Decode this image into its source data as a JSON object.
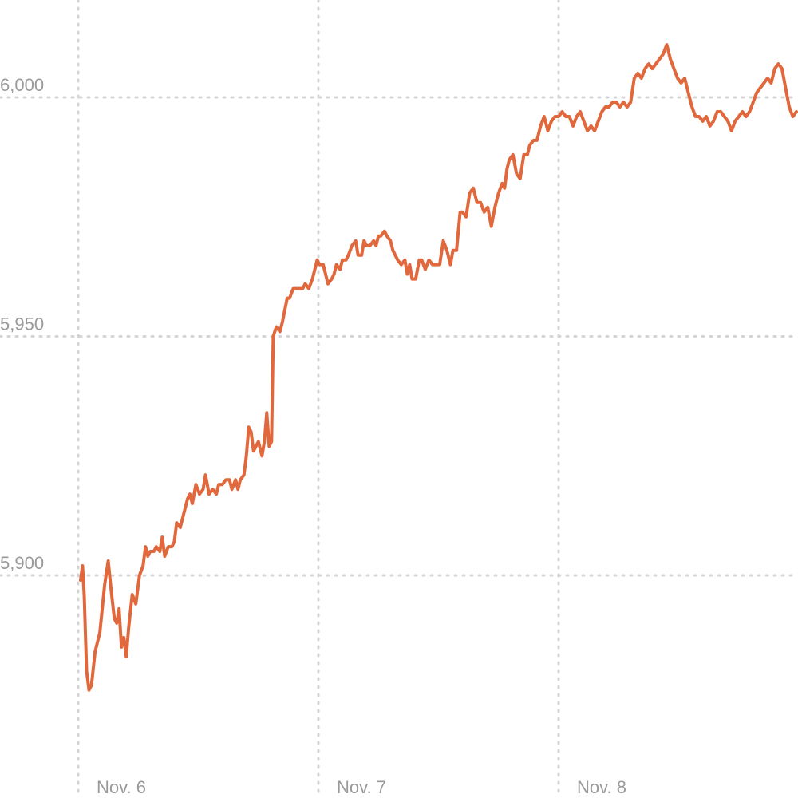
{
  "chart_data": {
    "type": "line",
    "title": "",
    "xlabel": "",
    "ylabel": "",
    "ylim": [
      5868,
      6021
    ],
    "xlim": [
      -0.01,
      3.0
    ],
    "yticks": [
      {
        "value": 5900,
        "label": "5,900"
      },
      {
        "value": 5950,
        "label": "5,950"
      },
      {
        "value": 6000,
        "label": "6,000"
      }
    ],
    "xticks": [
      {
        "value": 0,
        "label": "Nov. 6"
      },
      {
        "value": 1,
        "label": "Nov. 7"
      },
      {
        "value": 2,
        "label": "Nov. 8"
      }
    ],
    "grid": true,
    "colors": {
      "line": "#e0683c",
      "grid": "#d4d4d4",
      "tick_text": "#9a9a9a"
    },
    "series": [
      {
        "values": [
          [
            0.01,
            5899
          ],
          [
            0.018,
            5902
          ],
          [
            0.025,
            5896
          ],
          [
            0.035,
            5880
          ],
          [
            0.045,
            5876
          ],
          [
            0.055,
            5877
          ],
          [
            0.07,
            5884
          ],
          [
            0.09,
            5888
          ],
          [
            0.11,
            5898
          ],
          [
            0.125,
            5903
          ],
          [
            0.135,
            5898
          ],
          [
            0.15,
            5891
          ],
          [
            0.16,
            5890
          ],
          [
            0.17,
            5893
          ],
          [
            0.18,
            5885
          ],
          [
            0.19,
            5887
          ],
          [
            0.2,
            5883
          ],
          [
            0.21,
            5889
          ],
          [
            0.225,
            5896
          ],
          [
            0.24,
            5894
          ],
          [
            0.255,
            5900
          ],
          [
            0.27,
            5902
          ],
          [
            0.28,
            5906
          ],
          [
            0.29,
            5904
          ],
          [
            0.3,
            5905
          ],
          [
            0.315,
            5905
          ],
          [
            0.325,
            5906
          ],
          [
            0.34,
            5905
          ],
          [
            0.35,
            5908
          ],
          [
            0.36,
            5904
          ],
          [
            0.375,
            5906
          ],
          [
            0.39,
            5906
          ],
          [
            0.4,
            5907
          ],
          [
            0.41,
            5911
          ],
          [
            0.425,
            5910
          ],
          [
            0.44,
            5913
          ],
          [
            0.455,
            5916
          ],
          [
            0.465,
            5917
          ],
          [
            0.475,
            5915
          ],
          [
            0.49,
            5919
          ],
          [
            0.505,
            5917
          ],
          [
            0.52,
            5918
          ],
          [
            0.53,
            5921
          ],
          [
            0.545,
            5917
          ],
          [
            0.56,
            5918
          ],
          [
            0.575,
            5917
          ],
          [
            0.585,
            5919
          ],
          [
            0.6,
            5919
          ],
          [
            0.615,
            5920
          ],
          [
            0.63,
            5920
          ],
          [
            0.64,
            5918
          ],
          [
            0.655,
            5920
          ],
          [
            0.665,
            5918
          ],
          [
            0.675,
            5920
          ],
          [
            0.69,
            5921
          ],
          [
            0.7,
            5925
          ],
          [
            0.71,
            5931
          ],
          [
            0.72,
            5930
          ],
          [
            0.73,
            5926
          ],
          [
            0.74,
            5927
          ],
          [
            0.75,
            5928
          ],
          [
            0.765,
            5925
          ],
          [
            0.775,
            5928
          ],
          [
            0.785,
            5934
          ],
          [
            0.795,
            5927
          ],
          [
            0.805,
            5928
          ],
          [
            0.812,
            5950
          ],
          [
            0.825,
            5952
          ],
          [
            0.84,
            5951
          ],
          [
            0.85,
            5953
          ],
          [
            0.87,
            5958
          ],
          [
            0.88,
            5958
          ],
          [
            0.895,
            5960
          ],
          [
            0.91,
            5960
          ],
          [
            0.925,
            5960
          ],
          [
            0.935,
            5960
          ],
          [
            0.945,
            5961
          ],
          [
            0.96,
            5960
          ],
          [
            0.975,
            5962
          ],
          [
            0.985,
            5964
          ],
          [
            0.995,
            5966
          ],
          [
            1.005,
            5965
          ],
          [
            1.02,
            5965
          ],
          [
            1.03,
            5963
          ],
          [
            1.04,
            5961
          ],
          [
            1.055,
            5962
          ],
          [
            1.065,
            5963
          ],
          [
            1.075,
            5965
          ],
          [
            1.09,
            5964
          ],
          [
            1.1,
            5966
          ],
          [
            1.115,
            5966
          ],
          [
            1.125,
            5967
          ],
          [
            1.14,
            5969
          ],
          [
            1.155,
            5970
          ],
          [
            1.165,
            5967
          ],
          [
            1.18,
            5967
          ],
          [
            1.19,
            5970
          ],
          [
            1.2,
            5969
          ],
          [
            1.215,
            5969
          ],
          [
            1.23,
            5970
          ],
          [
            1.24,
            5969
          ],
          [
            1.25,
            5971
          ],
          [
            1.26,
            5971
          ],
          [
            1.275,
            5972
          ],
          [
            1.285,
            5971
          ],
          [
            1.3,
            5970
          ],
          [
            1.31,
            5968
          ],
          [
            1.32,
            5967
          ],
          [
            1.33,
            5966
          ],
          [
            1.345,
            5965
          ],
          [
            1.36,
            5966
          ],
          [
            1.37,
            5963
          ],
          [
            1.38,
            5965
          ],
          [
            1.39,
            5962
          ],
          [
            1.405,
            5962
          ],
          [
            1.42,
            5966
          ],
          [
            1.43,
            5966
          ],
          [
            1.445,
            5964
          ],
          [
            1.46,
            5966
          ],
          [
            1.475,
            5965
          ],
          [
            1.49,
            5965
          ],
          [
            1.505,
            5965
          ],
          [
            1.52,
            5970
          ],
          [
            1.535,
            5968
          ],
          [
            1.55,
            5965
          ],
          [
            1.56,
            5968
          ],
          [
            1.575,
            5968
          ],
          [
            1.59,
            5976
          ],
          [
            1.6,
            5976
          ],
          [
            1.615,
            5975
          ],
          [
            1.63,
            5980
          ],
          [
            1.645,
            5981
          ],
          [
            1.66,
            5978
          ],
          [
            1.675,
            5978
          ],
          [
            1.69,
            5976
          ],
          [
            1.705,
            5977
          ],
          [
            1.72,
            5973
          ],
          [
            1.735,
            5977
          ],
          [
            1.75,
            5980
          ],
          [
            1.765,
            5982
          ],
          [
            1.775,
            5981
          ],
          [
            1.785,
            5985
          ],
          [
            1.795,
            5987
          ],
          [
            1.81,
            5988
          ],
          [
            1.825,
            5984
          ],
          [
            1.84,
            5983
          ],
          [
            1.855,
            5988
          ],
          [
            1.87,
            5988
          ],
          [
            1.88,
            5990
          ],
          [
            1.895,
            5991
          ],
          [
            1.91,
            5991
          ],
          [
            1.925,
            5994
          ],
          [
            1.94,
            5996
          ],
          [
            1.955,
            5993
          ],
          [
            1.97,
            5995
          ],
          [
            1.985,
            5996
          ],
          [
            2.0,
            5996
          ],
          [
            2.015,
            5997
          ],
          [
            2.03,
            5996
          ],
          [
            2.045,
            5996
          ],
          [
            2.06,
            5994
          ],
          [
            2.075,
            5996
          ],
          [
            2.09,
            5997
          ],
          [
            2.105,
            5995
          ],
          [
            2.12,
            5993
          ],
          [
            2.135,
            5994
          ],
          [
            2.15,
            5993
          ],
          [
            2.165,
            5995
          ],
          [
            2.18,
            5997
          ],
          [
            2.195,
            5998
          ],
          [
            2.21,
            5998
          ],
          [
            2.225,
            5999
          ],
          [
            2.24,
            5999
          ],
          [
            2.255,
            5998
          ],
          [
            2.27,
            5999
          ],
          [
            2.285,
            5998
          ],
          [
            2.3,
            5999
          ],
          [
            2.315,
            6004
          ],
          [
            2.33,
            6005
          ],
          [
            2.345,
            6004
          ],
          [
            2.36,
            6006
          ],
          [
            2.375,
            6007
          ],
          [
            2.39,
            6006
          ],
          [
            2.405,
            6007
          ],
          [
            2.42,
            6008
          ],
          [
            2.435,
            6009
          ],
          [
            2.45,
            6011
          ],
          [
            2.465,
            6008
          ],
          [
            2.48,
            6006
          ],
          [
            2.495,
            6004
          ],
          [
            2.51,
            6003
          ],
          [
            2.525,
            6004
          ],
          [
            2.54,
            6001
          ],
          [
            2.555,
            5998
          ],
          [
            2.57,
            5996
          ],
          [
            2.585,
            5996
          ],
          [
            2.6,
            5995
          ],
          [
            2.615,
            5996
          ],
          [
            2.63,
            5994
          ],
          [
            2.645,
            5995
          ],
          [
            2.66,
            5997
          ],
          [
            2.675,
            5997
          ],
          [
            2.69,
            5996
          ],
          [
            2.705,
            5995
          ],
          [
            2.72,
            5993
          ],
          [
            2.735,
            5995
          ],
          [
            2.75,
            5996
          ],
          [
            2.765,
            5997
          ],
          [
            2.78,
            5996
          ],
          [
            2.795,
            5997
          ],
          [
            2.81,
            5999
          ],
          [
            2.825,
            6001
          ],
          [
            2.84,
            6002
          ],
          [
            2.855,
            6003
          ],
          [
            2.87,
            6004
          ],
          [
            2.885,
            6003
          ],
          [
            2.9,
            6006
          ],
          [
            2.915,
            6007
          ],
          [
            2.93,
            6006
          ],
          [
            2.945,
            6002
          ],
          [
            2.96,
            5998
          ],
          [
            2.975,
            5996
          ],
          [
            2.99,
            5997
          ]
        ]
      }
    ]
  }
}
